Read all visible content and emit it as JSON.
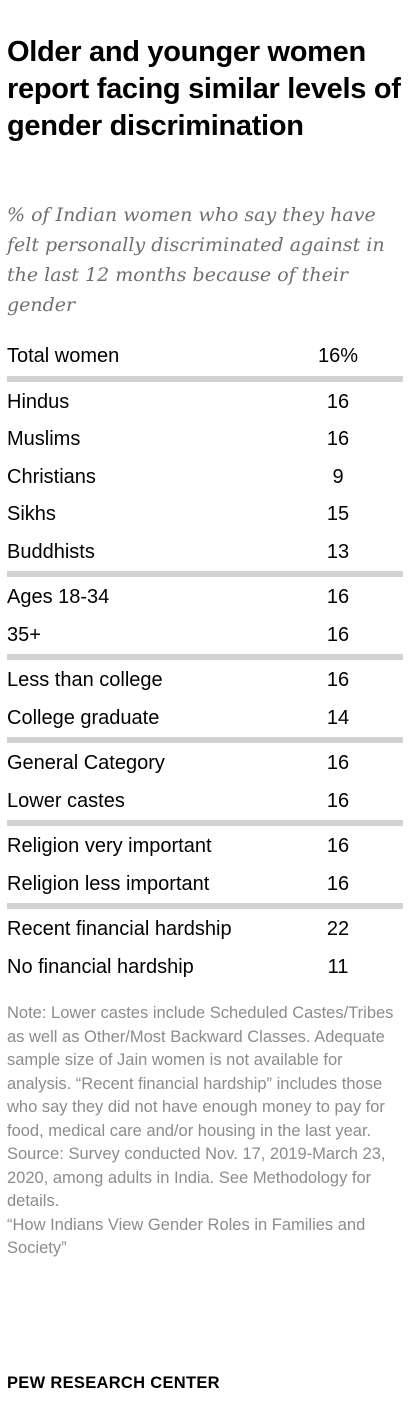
{
  "chart_data": {
    "type": "table",
    "title": "Older and younger women report facing similar levels of gender discrimination",
    "subtitle": "% of Indian women who say they have felt personally discriminated against in the last 12 months because of their gender",
    "groups": [
      {
        "rows": [
          {
            "label": "Total women",
            "value": "16%"
          }
        ]
      },
      {
        "rows": [
          {
            "label": "Hindus",
            "value": "16"
          },
          {
            "label": "Muslims",
            "value": "16"
          },
          {
            "label": "Christians",
            "value": "9"
          },
          {
            "label": "Sikhs",
            "value": "15"
          },
          {
            "label": "Buddhists",
            "value": "13"
          }
        ]
      },
      {
        "rows": [
          {
            "label": "Ages 18-34",
            "value": "16"
          },
          {
            "label": "35+",
            "value": "16"
          }
        ]
      },
      {
        "rows": [
          {
            "label": "Less than college",
            "value": "16"
          },
          {
            "label": "College graduate",
            "value": "14"
          }
        ]
      },
      {
        "rows": [
          {
            "label": "General Category",
            "value": "16"
          },
          {
            "label": "Lower castes",
            "value": "16"
          }
        ]
      },
      {
        "rows": [
          {
            "label": "Religion very important",
            "value": "16"
          },
          {
            "label": "Religion less important",
            "value": "16"
          }
        ]
      },
      {
        "rows": [
          {
            "label": "Recent financial hardship",
            "value": "22"
          },
          {
            "label": "No financial hardship",
            "value": "11"
          }
        ]
      }
    ]
  },
  "notes": {
    "note": "Note: Lower castes include Scheduled Castes/Tribes as well as Other/Most Backward Classes. Adequate sample size of Jain women is not available for analysis. “Recent financial hardship” includes those who say they did not have enough money to pay for food, medical care and/or housing in the last year.",
    "source": "Source: Survey conducted Nov. 17, 2019-March 23, 2020, among adults in India. See Methodology for details.",
    "report": "“How Indians View Gender Roles in Families and Society”"
  },
  "footer": "PEW RESEARCH CENTER"
}
